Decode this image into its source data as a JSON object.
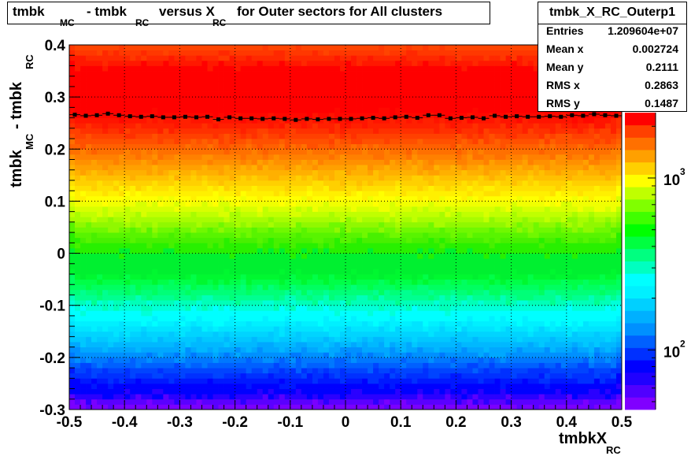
{
  "title": {
    "p1": "tmbk",
    "s1": "MC",
    "p2": "- tmbk",
    "s2": "RC",
    "p3": "versus X",
    "s3": "RC",
    "p4": "for Outer sectors for All clusters"
  },
  "stats": {
    "name": "tmbk_X_RC_Outerp1",
    "rows": [
      {
        "label": "Entries",
        "value": "1.209604e+07"
      },
      {
        "label": "Mean x",
        "value": "0.002724"
      },
      {
        "label": "Mean y",
        "value": "0.2111"
      },
      {
        "label": "RMS x",
        "value": "0.2863"
      },
      {
        "label": "RMS y",
        "value": "0.1487"
      }
    ]
  },
  "ylabel": {
    "p1": "tmbk",
    "s1": "MC",
    "p2": "- tmbk",
    "s2": "RC"
  },
  "xlabel": {
    "p1": "tmbkX",
    "s1": "RC"
  },
  "chart_data": {
    "type": "heatmap",
    "xlim": [
      -0.5,
      0.5
    ],
    "ylim": [
      -0.3,
      0.4
    ],
    "x_ticks": [
      "-0.5",
      "-0.4",
      "-0.3",
      "-0.2",
      "-0.1",
      "0",
      "0.1",
      "0.2",
      "0.3",
      "0.4",
      "0.5"
    ],
    "y_ticks": [
      "-0.3",
      "-0.2",
      "-0.1",
      "0",
      "0.1",
      "0.2",
      "0.3",
      "0.4"
    ],
    "grid": true,
    "z_scale": "log",
    "z_ticks": [
      {
        "base": "10",
        "exp": "2",
        "value": 100
      },
      {
        "base": "10",
        "exp": "3",
        "value": 1000
      }
    ],
    "z_range": [
      45,
      2400
    ],
    "y_bins": 70,
    "y_band_colors": [
      "#7a00ff",
      "#5a00ff",
      "#2a00ff",
      "#0000ff",
      "#0000ff",
      "#0018ff",
      "#0030ff",
      "#0044ff",
      "#0060ff",
      "#0078ff",
      "#0090ff",
      "#00a8ff",
      "#00b8ff",
      "#00c8ff",
      "#00d4ff",
      "#00e4ff",
      "#00f0ff",
      "#00ffff",
      "#00ffff",
      "#00ffd8",
      "#00ffb8",
      "#00ff90",
      "#00ff78",
      "#00ff60",
      "#00ff48",
      "#00f830",
      "#00f030",
      "#00f030",
      "#00f030",
      "#00f030",
      "#28f000",
      "#28f000",
      "#48f000",
      "#58f400",
      "#70f800",
      "#90f800",
      "#a8fc00",
      "#c0ff00",
      "#d8ff00",
      "#f0ff00",
      "#ffff00",
      "#fff000",
      "#ffe000",
      "#ffd000",
      "#ffc000",
      "#ffb000",
      "#ffa000",
      "#ff9000",
      "#ff8000",
      "#ff7000",
      "#ff6000",
      "#ff5000",
      "#ff4000",
      "#ff3000",
      "#ff2000",
      "#ff1400",
      "#ff0800",
      "#ff0000",
      "#ff0000",
      "#ff0000",
      "#ff0000",
      "#ff0000",
      "#ff0000",
      "#ff0000",
      "#ff0000",
      "#ff0000",
      "#ff1800",
      "#ff2800",
      "#ff3800",
      "#ff4400"
    ],
    "palette": [
      "#8000ff",
      "#5000ff",
      "#2000ff",
      "#0000ff",
      "#0030ff",
      "#0060ff",
      "#0090ff",
      "#00b0ff",
      "#00d0ff",
      "#00f0ff",
      "#00ffff",
      "#00ffc0",
      "#00ff80",
      "#00ff40",
      "#00ff00",
      "#40ff00",
      "#80ff00",
      "#c0ff00",
      "#ffff00",
      "#ffd000",
      "#ffa000",
      "#ff7000",
      "#ff4000",
      "#ff0000"
    ],
    "profile": {
      "x": [
        -0.49,
        -0.47,
        -0.45,
        -0.43,
        -0.41,
        -0.39,
        -0.37,
        -0.35,
        -0.33,
        -0.31,
        -0.29,
        -0.27,
        -0.25,
        -0.23,
        -0.21,
        -0.19,
        -0.17,
        -0.15,
        -0.13,
        -0.11,
        -0.09,
        -0.07,
        -0.05,
        -0.03,
        -0.01,
        0.01,
        0.03,
        0.05,
        0.07,
        0.09,
        0.11,
        0.13,
        0.15,
        0.17,
        0.19,
        0.21,
        0.23,
        0.25,
        0.27,
        0.29,
        0.31,
        0.33,
        0.35,
        0.37,
        0.39,
        0.41,
        0.43,
        0.45,
        0.47,
        0.49
      ],
      "y": [
        0.266,
        0.264,
        0.265,
        0.268,
        0.265,
        0.263,
        0.262,
        0.263,
        0.261,
        0.261,
        0.262,
        0.261,
        0.262,
        0.257,
        0.261,
        0.259,
        0.259,
        0.258,
        0.259,
        0.258,
        0.256,
        0.258,
        0.257,
        0.258,
        0.258,
        0.258,
        0.259,
        0.26,
        0.259,
        0.261,
        0.262,
        0.26,
        0.265,
        0.265,
        0.259,
        0.26,
        0.261,
        0.259,
        0.264,
        0.262,
        0.263,
        0.262,
        0.262,
        0.263,
        0.262,
        0.265,
        0.264,
        0.267,
        0.265,
        0.264
      ]
    }
  }
}
